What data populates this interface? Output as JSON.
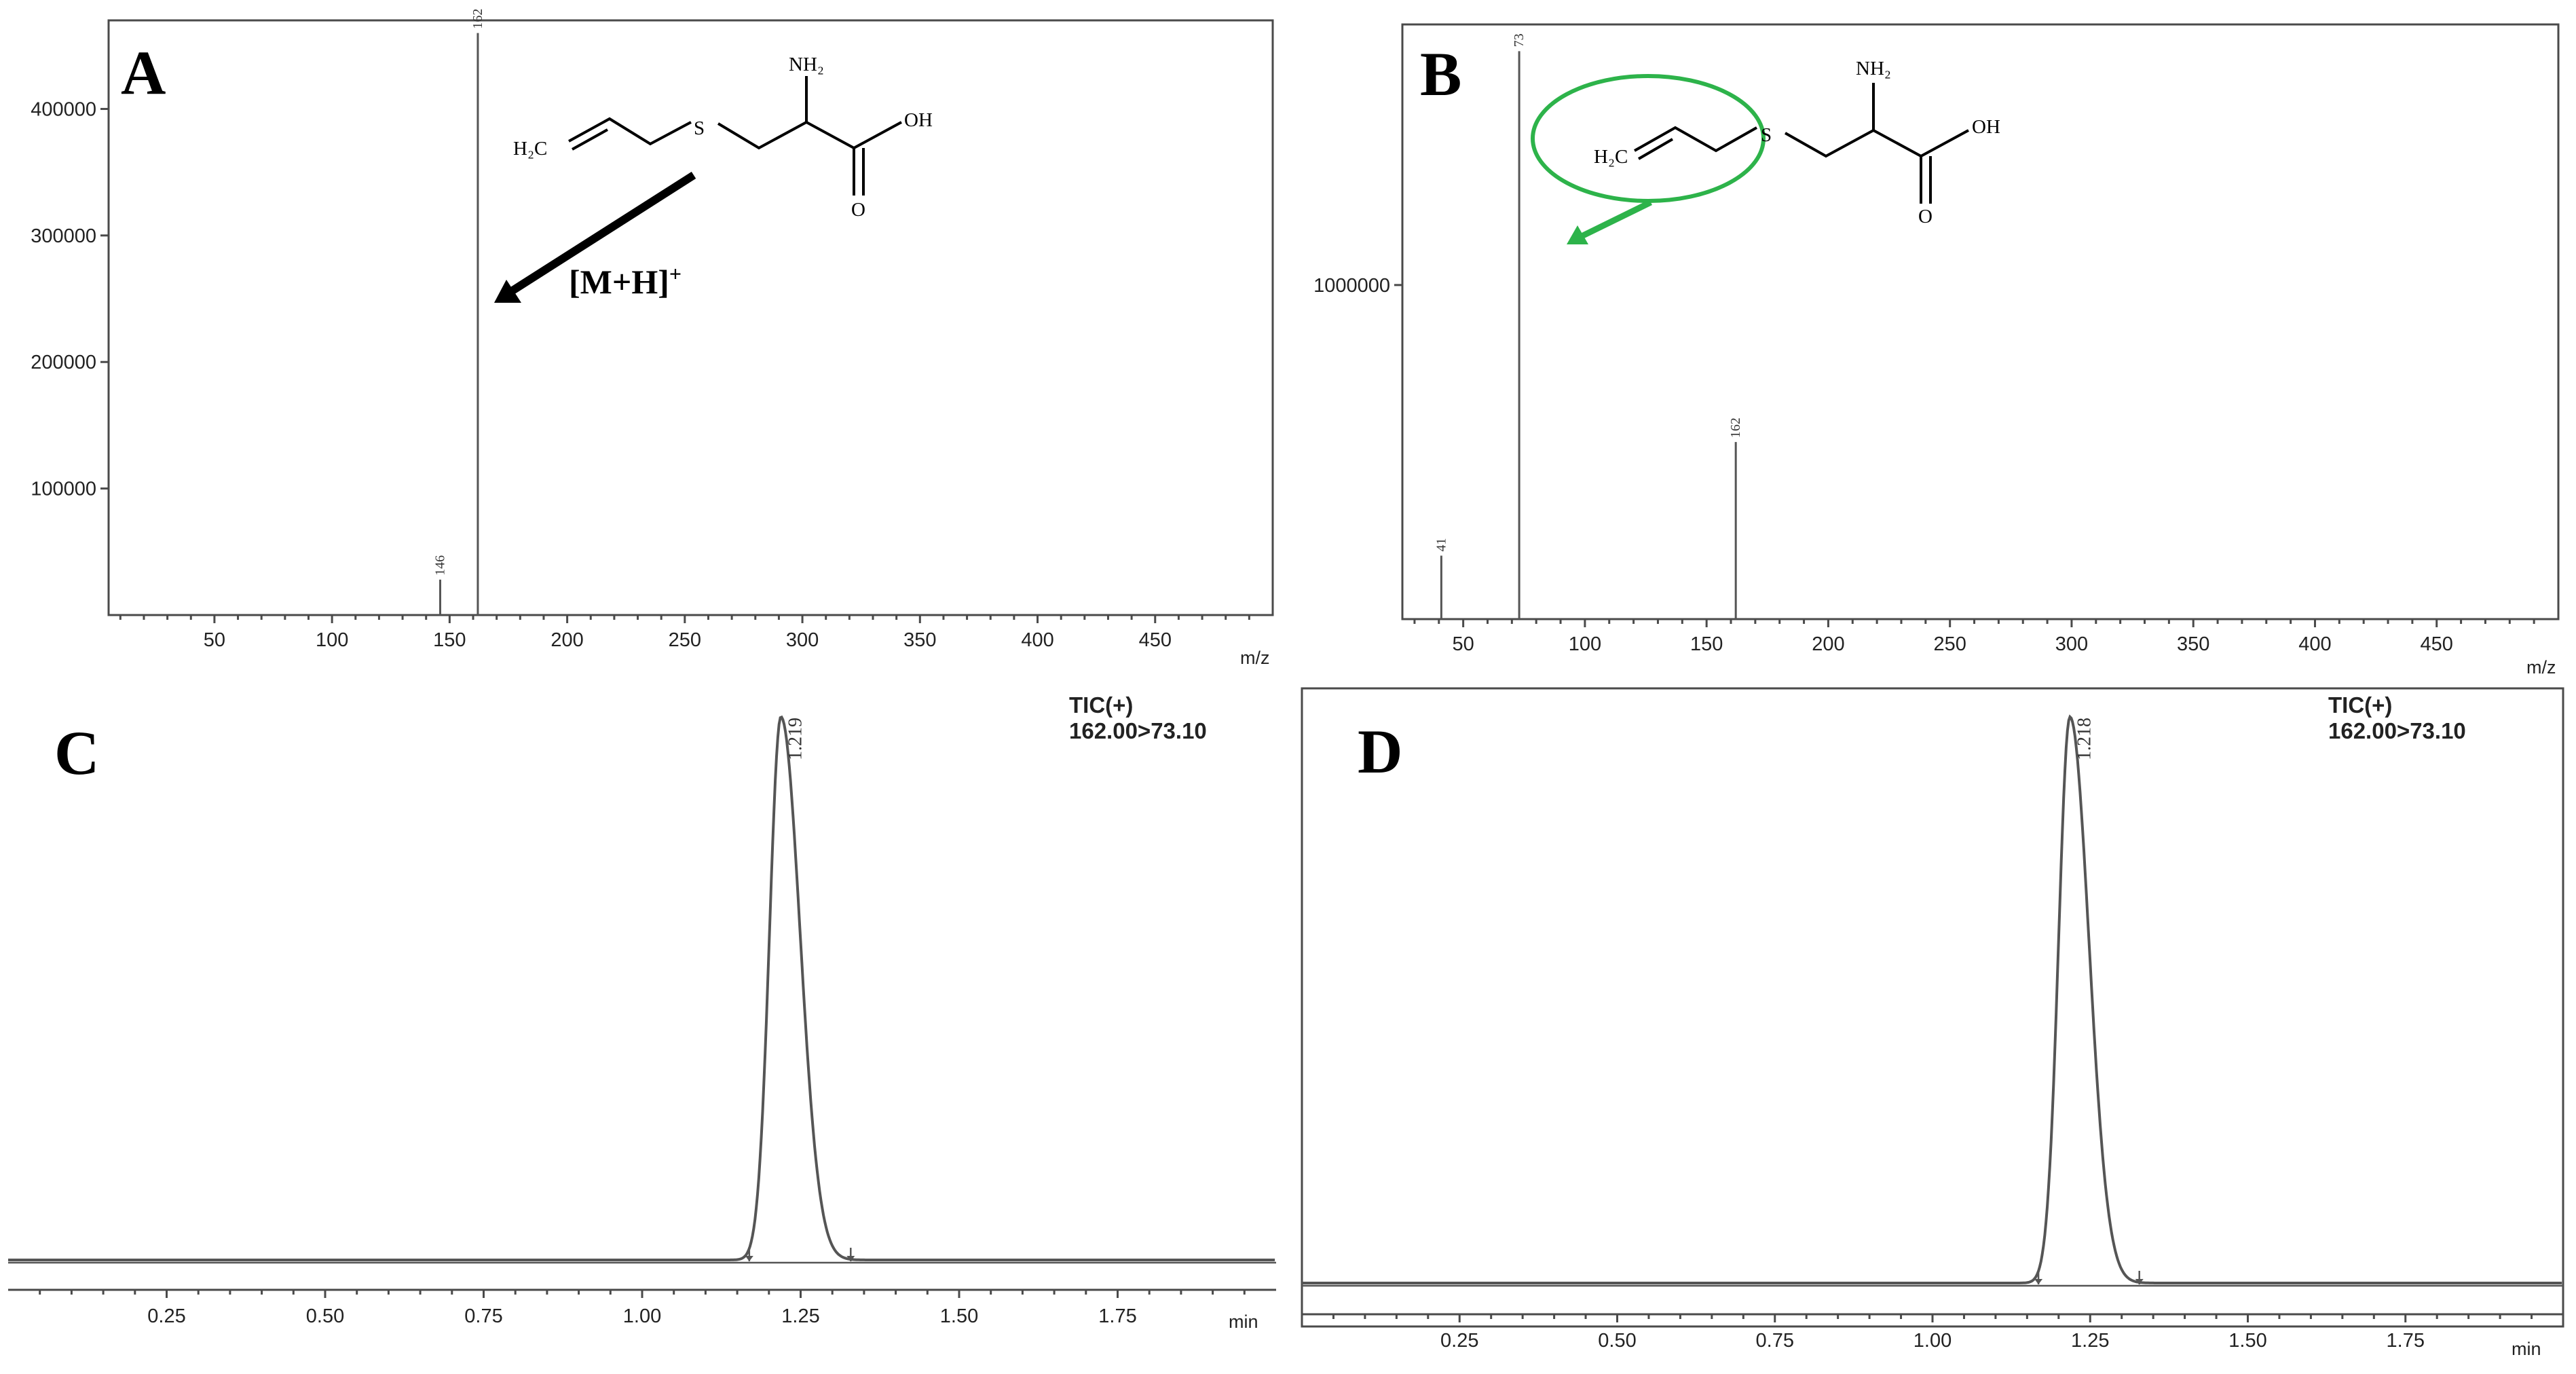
{
  "chart_data": [
    {
      "panel": "A",
      "type": "bar",
      "xlabel": "m/z",
      "xticks": [
        50,
        100,
        150,
        200,
        250,
        300,
        350,
        400,
        450
      ],
      "yticks": [
        100000,
        200000,
        300000,
        400000
      ],
      "xlim": [
        5,
        500
      ],
      "ylim": [
        0,
        470000
      ],
      "peaks": [
        {
          "mz": 146,
          "intensity": 28000,
          "label": "146"
        },
        {
          "mz": 162,
          "intensity": 460000,
          "label": "162"
        }
      ],
      "annotation": "[M+H]+",
      "structure_labels": {
        "ch2": "H₂C",
        "s": "S",
        "nh2": "NH₂",
        "oh": "OH",
        "o": "O"
      }
    },
    {
      "panel": "B",
      "type": "bar",
      "xlabel": "m/z",
      "xticks": [
        50,
        100,
        150,
        200,
        250,
        300,
        350,
        400,
        450
      ],
      "yticks": [
        1000000
      ],
      "xlim": [
        25,
        500
      ],
      "ylim": [
        0,
        1780000
      ],
      "peaks": [
        {
          "mz": 41,
          "intensity": 190000,
          "label": "41"
        },
        {
          "mz": 73,
          "intensity": 1700000,
          "label": "73"
        },
        {
          "mz": 162,
          "intensity": 530000,
          "label": "162"
        }
      ],
      "structure_labels": {
        "ch2": "H₂C",
        "s": "S",
        "nh2": "NH₂",
        "oh": "OH",
        "o": "O"
      },
      "highlight_color": "#2db34a"
    },
    {
      "panel": "C",
      "type": "line",
      "xlabel": "min",
      "xticks": [
        "0.25",
        "0.50",
        "0.75",
        "1.00",
        "1.25",
        "1.50",
        "1.75"
      ],
      "xlim": [
        0,
        2.0
      ],
      "channel": "TIC(+)",
      "transition": "162.00>73.10",
      "peak_rt": 1.219,
      "peak_label": "1.219"
    },
    {
      "panel": "D",
      "type": "line",
      "xlabel": "min",
      "xticks": [
        "0.25",
        "0.50",
        "0.75",
        "1.00",
        "1.25",
        "1.50",
        "1.75"
      ],
      "xlim": [
        0,
        2.0
      ],
      "channel": "TIC(+)",
      "transition": "162.00>73.10",
      "peak_rt": 1.218,
      "peak_label": "1.218"
    }
  ]
}
